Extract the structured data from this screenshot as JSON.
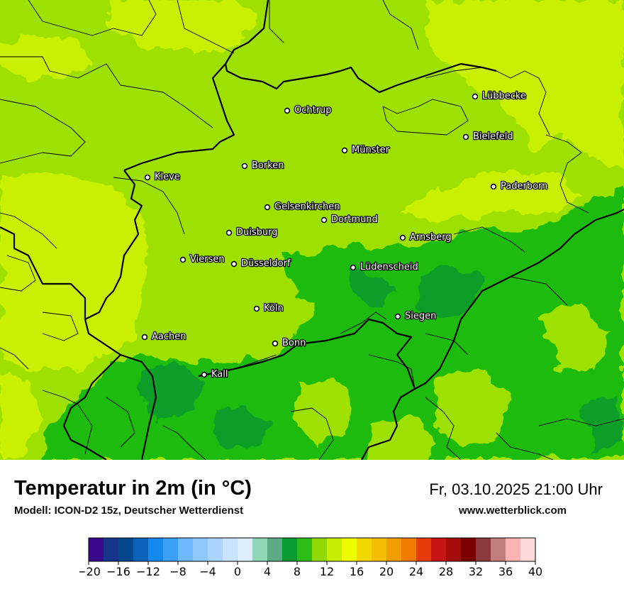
{
  "header": {
    "title": "Temperatur in 2m (in °C)",
    "subtitle": "Modell: ICON-D2 15z, Deutscher Wetterdienst",
    "datetime": "Fr, 03.10.2025 21:00 Uhr",
    "website": "www.wetterblick.com"
  },
  "map": {
    "cities": [
      {
        "name": "Lübbecke"
      },
      {
        "name": "Ochtrup"
      },
      {
        "name": "Bielefeld"
      },
      {
        "name": "Münster"
      },
      {
        "name": "Borken"
      },
      {
        "name": "Kleve"
      },
      {
        "name": "Paderborn"
      },
      {
        "name": "Gelsenkirchen"
      },
      {
        "name": "Dortmund"
      },
      {
        "name": "Duisburg"
      },
      {
        "name": "Arnsberg"
      },
      {
        "name": "Viersen"
      },
      {
        "name": "Düsseldorf"
      },
      {
        "name": "Lüdenscheid"
      },
      {
        "name": "Köln"
      },
      {
        "name": "Siegen"
      },
      {
        "name": "Aachen"
      },
      {
        "name": "Bonn"
      },
      {
        "name": "Kall"
      }
    ]
  },
  "colorbar": {
    "ticks": [
      "−20",
      "−16",
      "−12",
      "−8",
      "−4",
      "0",
      "4",
      "8",
      "12",
      "16",
      "20",
      "24",
      "28",
      "32",
      "36",
      "40"
    ],
    "colors": [
      "#3b0a8c",
      "#15368c",
      "#06468a",
      "#0a63b8",
      "#1389ef",
      "#3aa0f8",
      "#6cb9fb",
      "#90c9fb",
      "#a9d4fb",
      "#c9e3fd",
      "#dfeefe",
      "#8fd6b9",
      "#5daa87",
      "#0a9a32",
      "#2bbd13",
      "#92d707",
      "#c7ee00",
      "#eefc00",
      "#f3d800",
      "#f3bd00",
      "#f29e00",
      "#f07b00",
      "#e63c0a",
      "#c41414",
      "#a50d0d",
      "#7c0000",
      "#8a3a3a",
      "#c27d7d",
      "#fdb3b3",
      "#ffdada"
    ]
  }
}
